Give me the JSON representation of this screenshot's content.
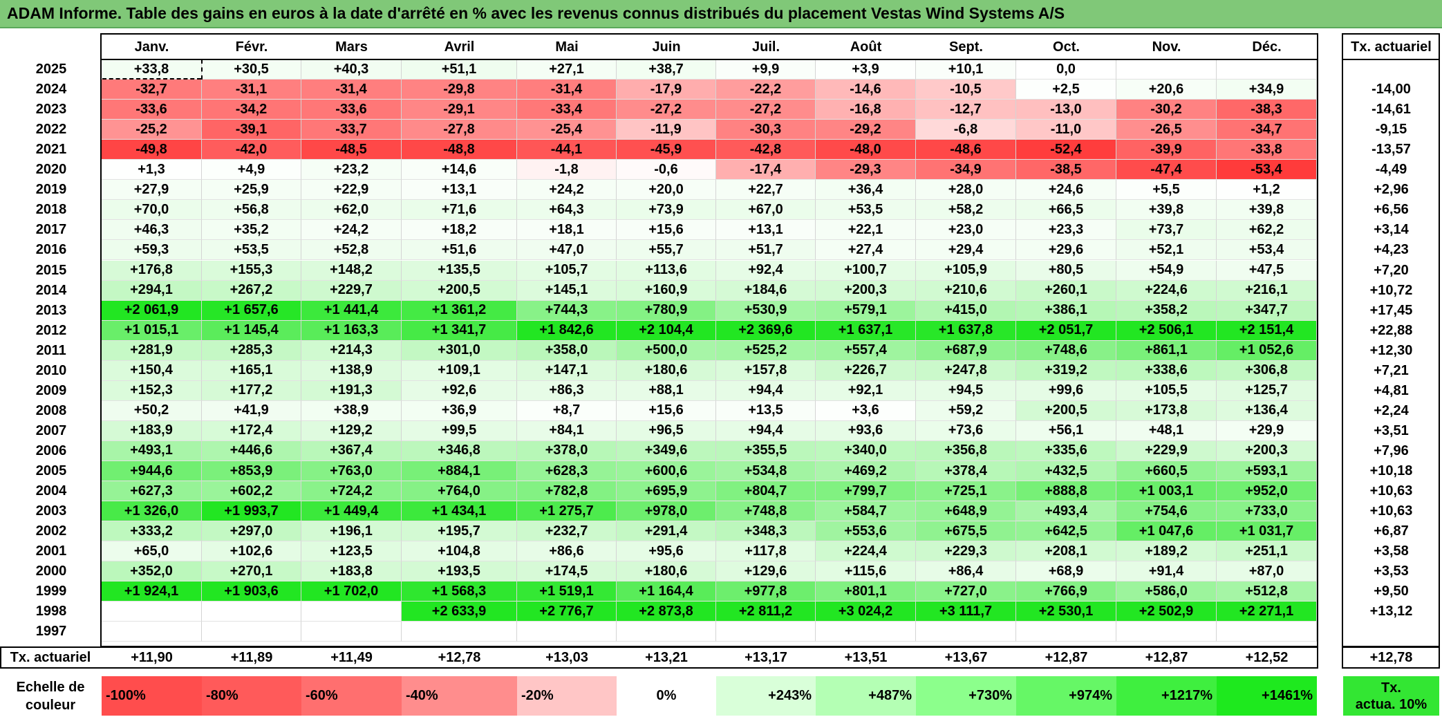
{
  "title": "ADAM Informe. Table des gains en euros à la date d'arrêté en % avec les revenus connus distribués du placement Vestas Wind Systems A/S",
  "months": [
    "Janv.",
    "Févr.",
    "Mars",
    "Avril",
    "Mai",
    "Juin",
    "Juil.",
    "Août",
    "Sept.",
    "Oct.",
    "Nov.",
    "Déc."
  ],
  "rate_header": "Tx. actuariel",
  "rows": [
    {
      "year": "2025",
      "values": [
        "+33,8",
        "+30,5",
        "+40,3",
        "+51,1",
        "+27,1",
        "+38,7",
        "+9,9",
        "+3,9",
        "+10,1",
        "0,0",
        "",
        ""
      ],
      "rate": ""
    },
    {
      "year": "2024",
      "values": [
        "-32,7",
        "-31,1",
        "-31,4",
        "-29,8",
        "-31,4",
        "-17,9",
        "-22,2",
        "-14,6",
        "-10,5",
        "+2,5",
        "+20,6",
        "+34,9"
      ],
      "rate": "-14,00"
    },
    {
      "year": "2023",
      "values": [
        "-33,6",
        "-34,2",
        "-33,6",
        "-29,1",
        "-33,4",
        "-27,2",
        "-27,2",
        "-16,8",
        "-12,7",
        "-13,0",
        "-30,2",
        "-38,3"
      ],
      "rate": "-14,61"
    },
    {
      "year": "2022",
      "values": [
        "-25,2",
        "-39,1",
        "-33,7",
        "-27,8",
        "-25,4",
        "-11,9",
        "-30,3",
        "-29,2",
        "-6,8",
        "-11,0",
        "-26,5",
        "-34,7"
      ],
      "rate": "-9,15"
    },
    {
      "year": "2021",
      "values": [
        "-49,8",
        "-42,0",
        "-48,5",
        "-48,8",
        "-44,1",
        "-45,9",
        "-42,8",
        "-48,0",
        "-48,6",
        "-52,4",
        "-39,9",
        "-33,8"
      ],
      "rate": "-13,57"
    },
    {
      "year": "2020",
      "values": [
        "+1,3",
        "+4,9",
        "+23,2",
        "+14,6",
        "-1,8",
        "-0,6",
        "-17,4",
        "-29,3",
        "-34,9",
        "-38,5",
        "-47,4",
        "-53,4"
      ],
      "rate": "-4,49"
    },
    {
      "year": "2019",
      "values": [
        "+27,9",
        "+25,9",
        "+22,9",
        "+13,1",
        "+24,2",
        "+20,0",
        "+22,7",
        "+36,4",
        "+28,0",
        "+24,6",
        "+5,5",
        "+1,2"
      ],
      "rate": "+2,96"
    },
    {
      "year": "2018",
      "values": [
        "+70,0",
        "+56,8",
        "+62,0",
        "+71,6",
        "+64,3",
        "+73,9",
        "+67,0",
        "+53,5",
        "+58,2",
        "+66,5",
        "+39,8",
        "+39,8"
      ],
      "rate": "+6,56"
    },
    {
      "year": "2017",
      "values": [
        "+46,3",
        "+35,2",
        "+24,2",
        "+18,2",
        "+18,1",
        "+15,6",
        "+13,1",
        "+22,1",
        "+23,0",
        "+23,3",
        "+73,7",
        "+62,2"
      ],
      "rate": "+3,14"
    },
    {
      "year": "2016",
      "values": [
        "+59,3",
        "+53,5",
        "+52,8",
        "+51,6",
        "+47,0",
        "+55,7",
        "+51,7",
        "+27,4",
        "+29,4",
        "+29,6",
        "+52,1",
        "+53,4"
      ],
      "rate": "+4,23"
    },
    {
      "year": "2015",
      "values": [
        "+176,8",
        "+155,3",
        "+148,2",
        "+135,5",
        "+105,7",
        "+113,6",
        "+92,4",
        "+100,7",
        "+105,9",
        "+80,5",
        "+54,9",
        "+47,5"
      ],
      "rate": "+7,20"
    },
    {
      "year": "2014",
      "values": [
        "+294,1",
        "+267,2",
        "+229,7",
        "+200,5",
        "+145,1",
        "+160,9",
        "+184,6",
        "+200,3",
        "+210,6",
        "+260,1",
        "+224,6",
        "+216,1"
      ],
      "rate": "+10,72"
    },
    {
      "year": "2013",
      "values": [
        "+2 061,9",
        "+1 657,6",
        "+1 441,4",
        "+1 361,2",
        "+744,3",
        "+780,9",
        "+530,9",
        "+579,1",
        "+415,0",
        "+386,1",
        "+358,2",
        "+347,7"
      ],
      "rate": "+17,45"
    },
    {
      "year": "2012",
      "values": [
        "+1 015,1",
        "+1 145,4",
        "+1 163,3",
        "+1 341,7",
        "+1 842,6",
        "+2 104,4",
        "+2 369,6",
        "+1 637,1",
        "+1 637,8",
        "+2 051,7",
        "+2 506,1",
        "+2 151,4"
      ],
      "rate": "+22,88"
    },
    {
      "year": "2011",
      "values": [
        "+281,9",
        "+285,3",
        "+214,3",
        "+301,0",
        "+358,0",
        "+500,0",
        "+525,2",
        "+557,4",
        "+687,9",
        "+748,6",
        "+861,1",
        "+1 052,6"
      ],
      "rate": "+12,30"
    },
    {
      "year": "2010",
      "values": [
        "+150,4",
        "+165,1",
        "+138,9",
        "+109,1",
        "+147,1",
        "+180,6",
        "+157,8",
        "+226,7",
        "+247,8",
        "+319,2",
        "+338,6",
        "+306,8"
      ],
      "rate": "+7,21"
    },
    {
      "year": "2009",
      "values": [
        "+152,3",
        "+177,2",
        "+191,3",
        "+92,6",
        "+86,3",
        "+88,1",
        "+94,4",
        "+92,1",
        "+94,5",
        "+99,6",
        "+105,5",
        "+125,7"
      ],
      "rate": "+4,81"
    },
    {
      "year": "2008",
      "values": [
        "+50,2",
        "+41,9",
        "+38,9",
        "+36,9",
        "+8,7",
        "+15,6",
        "+13,5",
        "+3,6",
        "+59,2",
        "+200,5",
        "+173,8",
        "+136,4"
      ],
      "rate": "+2,24"
    },
    {
      "year": "2007",
      "values": [
        "+183,9",
        "+172,4",
        "+129,2",
        "+99,5",
        "+84,1",
        "+96,5",
        "+94,4",
        "+93,6",
        "+73,6",
        "+56,1",
        "+48,1",
        "+29,9"
      ],
      "rate": "+3,51"
    },
    {
      "year": "2006",
      "values": [
        "+493,1",
        "+446,6",
        "+367,4",
        "+346,8",
        "+378,0",
        "+349,6",
        "+355,5",
        "+340,0",
        "+356,8",
        "+335,6",
        "+229,9",
        "+200,3"
      ],
      "rate": "+7,96"
    },
    {
      "year": "2005",
      "values": [
        "+944,6",
        "+853,9",
        "+763,0",
        "+884,1",
        "+628,3",
        "+600,6",
        "+534,8",
        "+469,2",
        "+378,4",
        "+432,5",
        "+660,5",
        "+593,1"
      ],
      "rate": "+10,18"
    },
    {
      "year": "2004",
      "values": [
        "+627,3",
        "+602,2",
        "+724,2",
        "+764,0",
        "+782,8",
        "+695,9",
        "+804,7",
        "+799,7",
        "+725,1",
        "+888,8",
        "+1 003,1",
        "+952,0"
      ],
      "rate": "+10,63"
    },
    {
      "year": "2003",
      "values": [
        "+1 326,0",
        "+1 993,7",
        "+1 449,4",
        "+1 434,1",
        "+1 275,7",
        "+978,0",
        "+748,8",
        "+584,7",
        "+648,9",
        "+493,4",
        "+754,6",
        "+733,0"
      ],
      "rate": "+10,63"
    },
    {
      "year": "2002",
      "values": [
        "+333,2",
        "+297,0",
        "+196,1",
        "+195,7",
        "+232,7",
        "+291,4",
        "+348,3",
        "+553,6",
        "+675,5",
        "+642,5",
        "+1 047,6",
        "+1 031,7"
      ],
      "rate": "+6,87"
    },
    {
      "year": "2001",
      "values": [
        "+65,0",
        "+102,6",
        "+123,5",
        "+104,8",
        "+86,6",
        "+95,6",
        "+117,8",
        "+224,4",
        "+229,3",
        "+208,1",
        "+189,2",
        "+251,1"
      ],
      "rate": "+3,58"
    },
    {
      "year": "2000",
      "values": [
        "+352,0",
        "+270,1",
        "+183,8",
        "+193,5",
        "+174,5",
        "+180,6",
        "+129,6",
        "+115,6",
        "+86,4",
        "+68,9",
        "+91,4",
        "+87,0"
      ],
      "rate": "+3,53"
    },
    {
      "year": "1999",
      "values": [
        "+1 924,1",
        "+1 903,6",
        "+1 702,0",
        "+1 568,3",
        "+1 519,1",
        "+1 164,4",
        "+977,8",
        "+801,1",
        "+727,0",
        "+766,9",
        "+586,0",
        "+512,8"
      ],
      "rate": "+9,50"
    },
    {
      "year": "1998",
      "values": [
        "",
        "",
        "",
        "+2 633,9",
        "+2 776,7",
        "+2 873,8",
        "+2 811,2",
        "+3 024,2",
        "+3 111,7",
        "+2 530,1",
        "+2 502,9",
        "+2 271,1"
      ],
      "rate": "+13,12"
    },
    {
      "year": "1997",
      "values": [
        "",
        "",
        "",
        "",
        "",
        "",
        "",
        "",
        "",
        "",
        "",
        ""
      ],
      "rate": ""
    }
  ],
  "footer": {
    "label": "Tx. actuariel",
    "values": [
      "+11,90",
      "+11,89",
      "+11,49",
      "+12,78",
      "+13,03",
      "+13,21",
      "+13,17",
      "+13,51",
      "+13,67",
      "+12,87",
      "+12,87",
      "+12,52"
    ],
    "rate": "+12,78"
  },
  "legend": {
    "label_line1": "Echelle de",
    "label_line2": "couleur",
    "steps": [
      "-100%",
      "-80%",
      "-60%",
      "-40%",
      "-20%",
      "0%",
      "+243%",
      "+487%",
      "+730%",
      "+974%",
      "+1217%",
      "+1461%"
    ],
    "step_colors": [
      "#ff4d4d",
      "#ff5a5a",
      "#ff6f6f",
      "#ff8d8d",
      "#ffc6c6",
      "#ffffff",
      "#d9ffd9",
      "#b4ffb4",
      "#8cff8c",
      "#66f766",
      "#3fef3f",
      "#1ee91e"
    ],
    "rate_line1": "Tx.",
    "rate_line2": "actua. 10%",
    "rate_color": "#33e633"
  },
  "colors": {
    "title_bg": "#80c878",
    "negative_max": "#ff3b3b",
    "positive_max": "#22e622"
  }
}
